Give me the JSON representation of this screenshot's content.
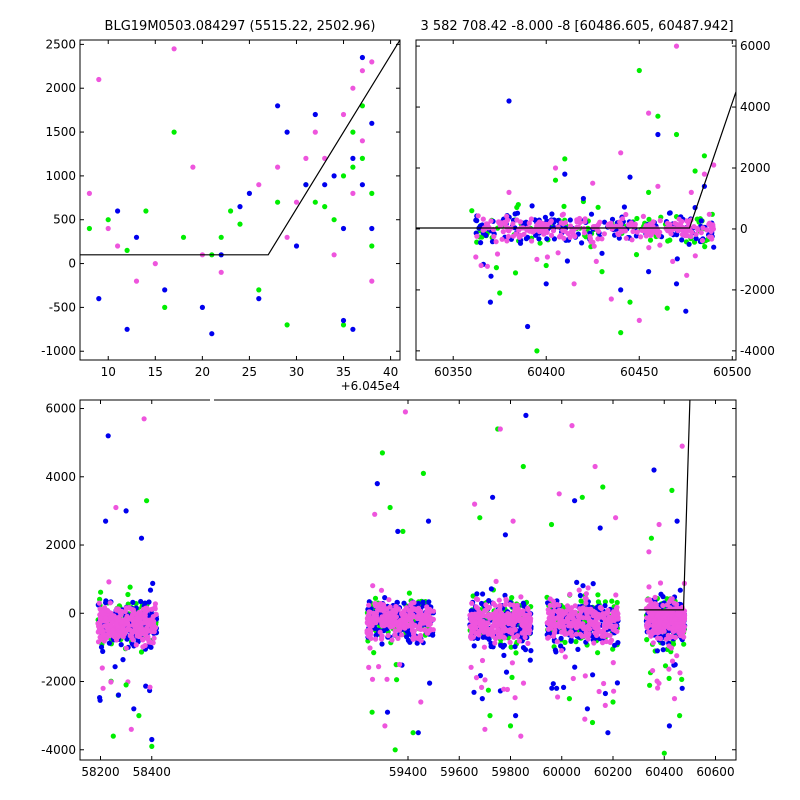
{
  "figure": {
    "title_left": "BLG19M0503.084297 (5515.22, 2502.96)",
    "title_right": "3 582 708.42 -8.000 -8 [60486.605, 60487.942]"
  },
  "colors": {
    "series_1": "#00ee00",
    "series_2": "#0000ee",
    "series_3": "#ee55dd",
    "model_line": "#000000",
    "axes": "#000000",
    "background": "#ffffff"
  },
  "chart_data": [
    {
      "type": "scatter",
      "panel": "top-left",
      "xlim": [
        7,
        41
      ],
      "ylim": [
        -1100,
        2550
      ],
      "x_offset_label": "+6.045e4",
      "xticks": [
        10,
        15,
        20,
        25,
        30,
        35,
        40
      ],
      "yticks": [
        -1000,
        -500,
        0,
        500,
        1000,
        1500,
        2000,
        2500
      ],
      "yaxis_side": "left",
      "grid": false,
      "model_line": {
        "x": [
          7,
          27,
          41
        ],
        "y": [
          100,
          100,
          2550
        ]
      },
      "series": [
        {
          "points": [
            [
              8,
              400
            ],
            [
              10,
              500
            ],
            [
              12,
              150
            ],
            [
              14,
              600
            ],
            [
              16,
              -500
            ],
            [
              17,
              1500
            ],
            [
              18,
              300
            ],
            [
              21,
              100
            ],
            [
              22,
              300
            ],
            [
              23,
              600
            ],
            [
              24,
              450
            ],
            [
              26,
              -300
            ],
            [
              28,
              700
            ],
            [
              29,
              -700
            ],
            [
              31,
              900
            ],
            [
              32,
              700
            ],
            [
              33,
              650
            ],
            [
              34,
              500
            ],
            [
              35,
              1000
            ],
            [
              36,
              1100
            ],
            [
              36,
              1500
            ],
            [
              37,
              1800
            ],
            [
              37,
              1200
            ],
            [
              38,
              800
            ],
            [
              38,
              200
            ],
            [
              35,
              -700
            ]
          ]
        },
        {
          "points": [
            [
              9,
              -400
            ],
            [
              11,
              600
            ],
            [
              12,
              -750
            ],
            [
              13,
              300
            ],
            [
              16,
              -300
            ],
            [
              20,
              -500
            ],
            [
              21,
              -800
            ],
            [
              22,
              100
            ],
            [
              24,
              650
            ],
            [
              25,
              800
            ],
            [
              26,
              -400
            ],
            [
              28,
              1800
            ],
            [
              29,
              1500
            ],
            [
              30,
              200
            ],
            [
              31,
              900
            ],
            [
              32,
              1700
            ],
            [
              33,
              900
            ],
            [
              34,
              1000
            ],
            [
              35,
              400
            ],
            [
              35,
              -650
            ],
            [
              36,
              1200
            ],
            [
              37,
              2350
            ],
            [
              37,
              900
            ],
            [
              38,
              1600
            ],
            [
              38,
              400
            ],
            [
              36,
              -750
            ]
          ]
        },
        {
          "points": [
            [
              8,
              800
            ],
            [
              9,
              2100
            ],
            [
              10,
              400
            ],
            [
              11,
              200
            ],
            [
              13,
              -200
            ],
            [
              15,
              0
            ],
            [
              17,
              2450
            ],
            [
              19,
              1100
            ],
            [
              20,
              100
            ],
            [
              22,
              -100
            ],
            [
              26,
              900
            ],
            [
              28,
              1100
            ],
            [
              29,
              300
            ],
            [
              30,
              700
            ],
            [
              31,
              1200
            ],
            [
              32,
              1500
            ],
            [
              33,
              1200
            ],
            [
              35,
              1700
            ],
            [
              36,
              2000
            ],
            [
              37,
              2200
            ],
            [
              38,
              2300
            ],
            [
              37,
              1400
            ],
            [
              38,
              -200
            ],
            [
              34,
              100
            ],
            [
              36,
              800
            ]
          ]
        }
      ]
    },
    {
      "type": "scatter",
      "panel": "top-right",
      "xlim": [
        60330,
        60502
      ],
      "ylim": [
        -4300,
        6200
      ],
      "xticks": [
        60350,
        60400,
        60450,
        60500
      ],
      "yticks": [
        -4000,
        -2000,
        0,
        2000,
        4000,
        6000
      ],
      "yaxis_side": "right",
      "grid": false,
      "model_line": {
        "x": [
          60330,
          60477,
          60502
        ],
        "y": [
          30,
          30,
          4500
        ]
      },
      "band": {
        "x": [
          60362,
          60490
        ],
        "center": 0,
        "spread": 350
      },
      "series": [
        {
          "points": [
            [
              60375,
              -2100
            ],
            [
              60385,
              800
            ],
            [
              60395,
              -4000
            ],
            [
              60405,
              1600
            ],
            [
              60410,
              2300
            ],
            [
              60420,
              900
            ],
            [
              60430,
              -1400
            ],
            [
              60440,
              -3400
            ],
            [
              60450,
              5200
            ],
            [
              60455,
              1200
            ],
            [
              60460,
              3700
            ],
            [
              60465,
              -2600
            ],
            [
              60470,
              3100
            ],
            [
              60480,
              1900
            ],
            [
              60485,
              2400
            ],
            [
              60360,
              600
            ],
            [
              60400,
              -1200
            ],
            [
              60445,
              -2400
            ]
          ]
        },
        {
          "points": [
            [
              60370,
              -2400
            ],
            [
              60380,
              4200
            ],
            [
              60390,
              -3200
            ],
            [
              60400,
              -1800
            ],
            [
              60410,
              1800
            ],
            [
              60420,
              1000
            ],
            [
              60430,
              -800
            ],
            [
              60440,
              -2000
            ],
            [
              60445,
              1700
            ],
            [
              60455,
              -1400
            ],
            [
              60460,
              3100
            ],
            [
              60470,
              -1800
            ],
            [
              60475,
              -2700
            ],
            [
              60480,
              700
            ],
            [
              60485,
              1400
            ],
            [
              60490,
              -600
            ]
          ]
        },
        {
          "points": [
            [
              60380,
              1200
            ],
            [
              60395,
              -1000
            ],
            [
              60405,
              2000
            ],
            [
              60415,
              -1800
            ],
            [
              60425,
              1500
            ],
            [
              60435,
              -2300
            ],
            [
              60440,
              2500
            ],
            [
              60450,
              -3000
            ],
            [
              60455,
              3800
            ],
            [
              60460,
              1400
            ],
            [
              60470,
              6000
            ],
            [
              60478,
              1200
            ],
            [
              60485,
              1800
            ],
            [
              60490,
              2100
            ],
            [
              60365,
              -1200
            ]
          ]
        }
      ]
    },
    {
      "type": "scatter",
      "panel": "bottom",
      "xlim": [
        58120,
        60680
      ],
      "ylim": [
        -4300,
        6250
      ],
      "xticks_left": [
        58200,
        58400
      ],
      "xticks_right": [
        59400,
        59600,
        59800,
        60000,
        60200,
        60400,
        60600
      ],
      "yticks": [
        -4000,
        -2000,
        0,
        2000,
        4000,
        6000
      ],
      "yaxis_side": "left",
      "grid": false,
      "model_line": {
        "x": [
          60300,
          60475,
          60500
        ],
        "y": [
          100,
          100,
          6250
        ]
      },
      "seasons": [
        {
          "x": [
            58190,
            58420
          ],
          "center": -300,
          "spread": 500
        },
        {
          "x": [
            59240,
            59500
          ],
          "center": -200,
          "spread": 450
        },
        {
          "x": [
            59640,
            59880
          ],
          "center": -250,
          "spread": 500
        },
        {
          "x": [
            59940,
            60220
          ],
          "center": -250,
          "spread": 500
        },
        {
          "x": [
            60330,
            60480
          ],
          "center": -200,
          "spread": 450
        }
      ],
      "series": [
        {
          "points": [
            [
              58250,
              -3600
            ],
            [
              58300,
              -2100
            ],
            [
              58350,
              -3000
            ],
            [
              58380,
              3300
            ],
            [
              58400,
              -3900
            ],
            [
              59260,
              -2900
            ],
            [
              59300,
              4700
            ],
            [
              59330,
              3100
            ],
            [
              59350,
              -4000
            ],
            [
              59380,
              2400
            ],
            [
              59420,
              -3500
            ],
            [
              59460,
              4100
            ],
            [
              59680,
              2800
            ],
            [
              59720,
              -3000
            ],
            [
              59750,
              5400
            ],
            [
              59800,
              -3300
            ],
            [
              59850,
              4300
            ],
            [
              59960,
              2600
            ],
            [
              60030,
              -2500
            ],
            [
              60080,
              3400
            ],
            [
              60120,
              -3200
            ],
            [
              60160,
              3700
            ],
            [
              60200,
              -2600
            ],
            [
              60350,
              2200
            ],
            [
              60400,
              -4100
            ],
            [
              60430,
              3600
            ],
            [
              60460,
              -3000
            ]
          ]
        },
        {
          "points": [
            [
              58220,
              2700
            ],
            [
              58230,
              5200
            ],
            [
              58300,
              3000
            ],
            [
              58330,
              -2800
            ],
            [
              58360,
              2200
            ],
            [
              58400,
              -3700
            ],
            [
              59280,
              3800
            ],
            [
              59320,
              -2900
            ],
            [
              59360,
              2400
            ],
            [
              59440,
              -3500
            ],
            [
              59480,
              2700
            ],
            [
              59690,
              -2500
            ],
            [
              59730,
              3400
            ],
            [
              59780,
              2300
            ],
            [
              59820,
              -3000
            ],
            [
              59860,
              5800
            ],
            [
              59980,
              -2200
            ],
            [
              60050,
              3300
            ],
            [
              60100,
              -2800
            ],
            [
              60150,
              2500
            ],
            [
              60180,
              -3500
            ],
            [
              60360,
              4200
            ],
            [
              60420,
              -3300
            ],
            [
              60450,
              2700
            ],
            [
              60470,
              -2200
            ]
          ]
        },
        {
          "points": [
            [
              58210,
              -2200
            ],
            [
              58260,
              3100
            ],
            [
              58320,
              -3400
            ],
            [
              58370,
              5700
            ],
            [
              59270,
              2900
            ],
            [
              59310,
              -3300
            ],
            [
              59390,
              5900
            ],
            [
              59450,
              -2600
            ],
            [
              59660,
              3200
            ],
            [
              59700,
              -3400
            ],
            [
              59760,
              5400
            ],
            [
              59810,
              2700
            ],
            [
              59840,
              -3600
            ],
            [
              59990,
              3500
            ],
            [
              60040,
              5500
            ],
            [
              60090,
              -3100
            ],
            [
              60130,
              4300
            ],
            [
              60170,
              -2700
            ],
            [
              60210,
              2800
            ],
            [
              60340,
              1800
            ],
            [
              60380,
              2600
            ],
            [
              60440,
              -2500
            ],
            [
              60470,
              4900
            ]
          ]
        }
      ]
    }
  ]
}
